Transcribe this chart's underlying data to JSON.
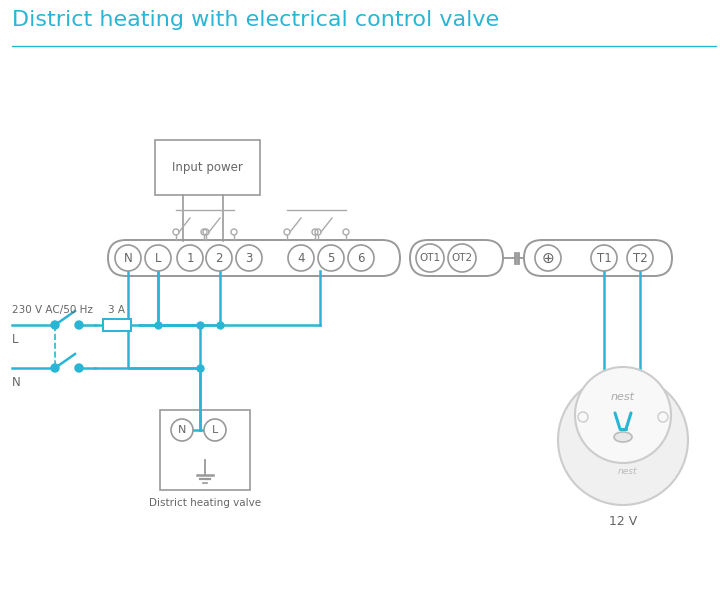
{
  "title": "District heating with electrical control valve",
  "title_color": "#29b6d4",
  "title_fontsize": 16,
  "bg_color": "#ffffff",
  "wire_color": "#29b6d4",
  "box_color": "#999999",
  "text_color": "#666666",
  "label_230v": "230 V AC/50 Hz",
  "label_L": "L",
  "label_N": "N",
  "label_3A": "3 A",
  "label_input_power": "Input power",
  "label_district": "District heating valve",
  "label_12v": "12 V",
  "label_nest": "nest",
  "figw": 7.28,
  "figh": 5.94,
  "dpi": 100
}
